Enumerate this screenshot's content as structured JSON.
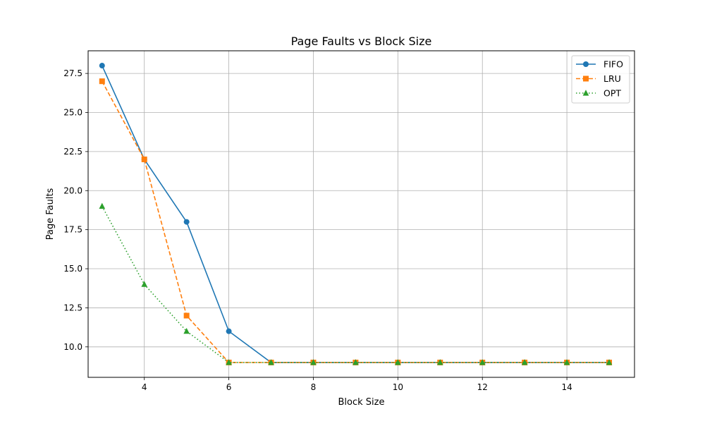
{
  "chart_data": {
    "type": "line",
    "title": "Page Faults vs Block Size",
    "xlabel": "Block Size",
    "ylabel": "Page Faults",
    "x": [
      3,
      4,
      5,
      6,
      7,
      8,
      9,
      10,
      11,
      12,
      13,
      14,
      15
    ],
    "xlim": [
      2.67,
      15.6
    ],
    "ylim": [
      8.05,
      28.95
    ],
    "xticks": [
      4,
      6,
      8,
      10,
      12,
      14
    ],
    "yticks": [
      10.0,
      12.5,
      15.0,
      17.5,
      20.0,
      22.5,
      25.0,
      27.5
    ],
    "xtick_labels": [
      "4",
      "6",
      "8",
      "10",
      "12",
      "14"
    ],
    "ytick_labels": [
      "10.0",
      "12.5",
      "15.0",
      "17.5",
      "20.0",
      "22.5",
      "25.0",
      "27.5"
    ],
    "grid": true,
    "legend_position": "top-right",
    "series": [
      {
        "name": "FIFO",
        "values": [
          28,
          22,
          18,
          11,
          9,
          9,
          9,
          9,
          9,
          9,
          9,
          9,
          9
        ],
        "color": "#1f77b4",
        "line_style": "solid",
        "marker": "circle"
      },
      {
        "name": "LRU",
        "values": [
          27,
          22,
          12,
          9,
          9,
          9,
          9,
          9,
          9,
          9,
          9,
          9,
          9
        ],
        "color": "#ff7f0e",
        "line_style": "dashed",
        "marker": "square"
      },
      {
        "name": "OPT",
        "values": [
          19,
          14,
          11,
          9,
          9,
          9,
          9,
          9,
          9,
          9,
          9,
          9,
          9
        ],
        "color": "#2ca02c",
        "line_style": "dotted",
        "marker": "triangle"
      }
    ]
  }
}
